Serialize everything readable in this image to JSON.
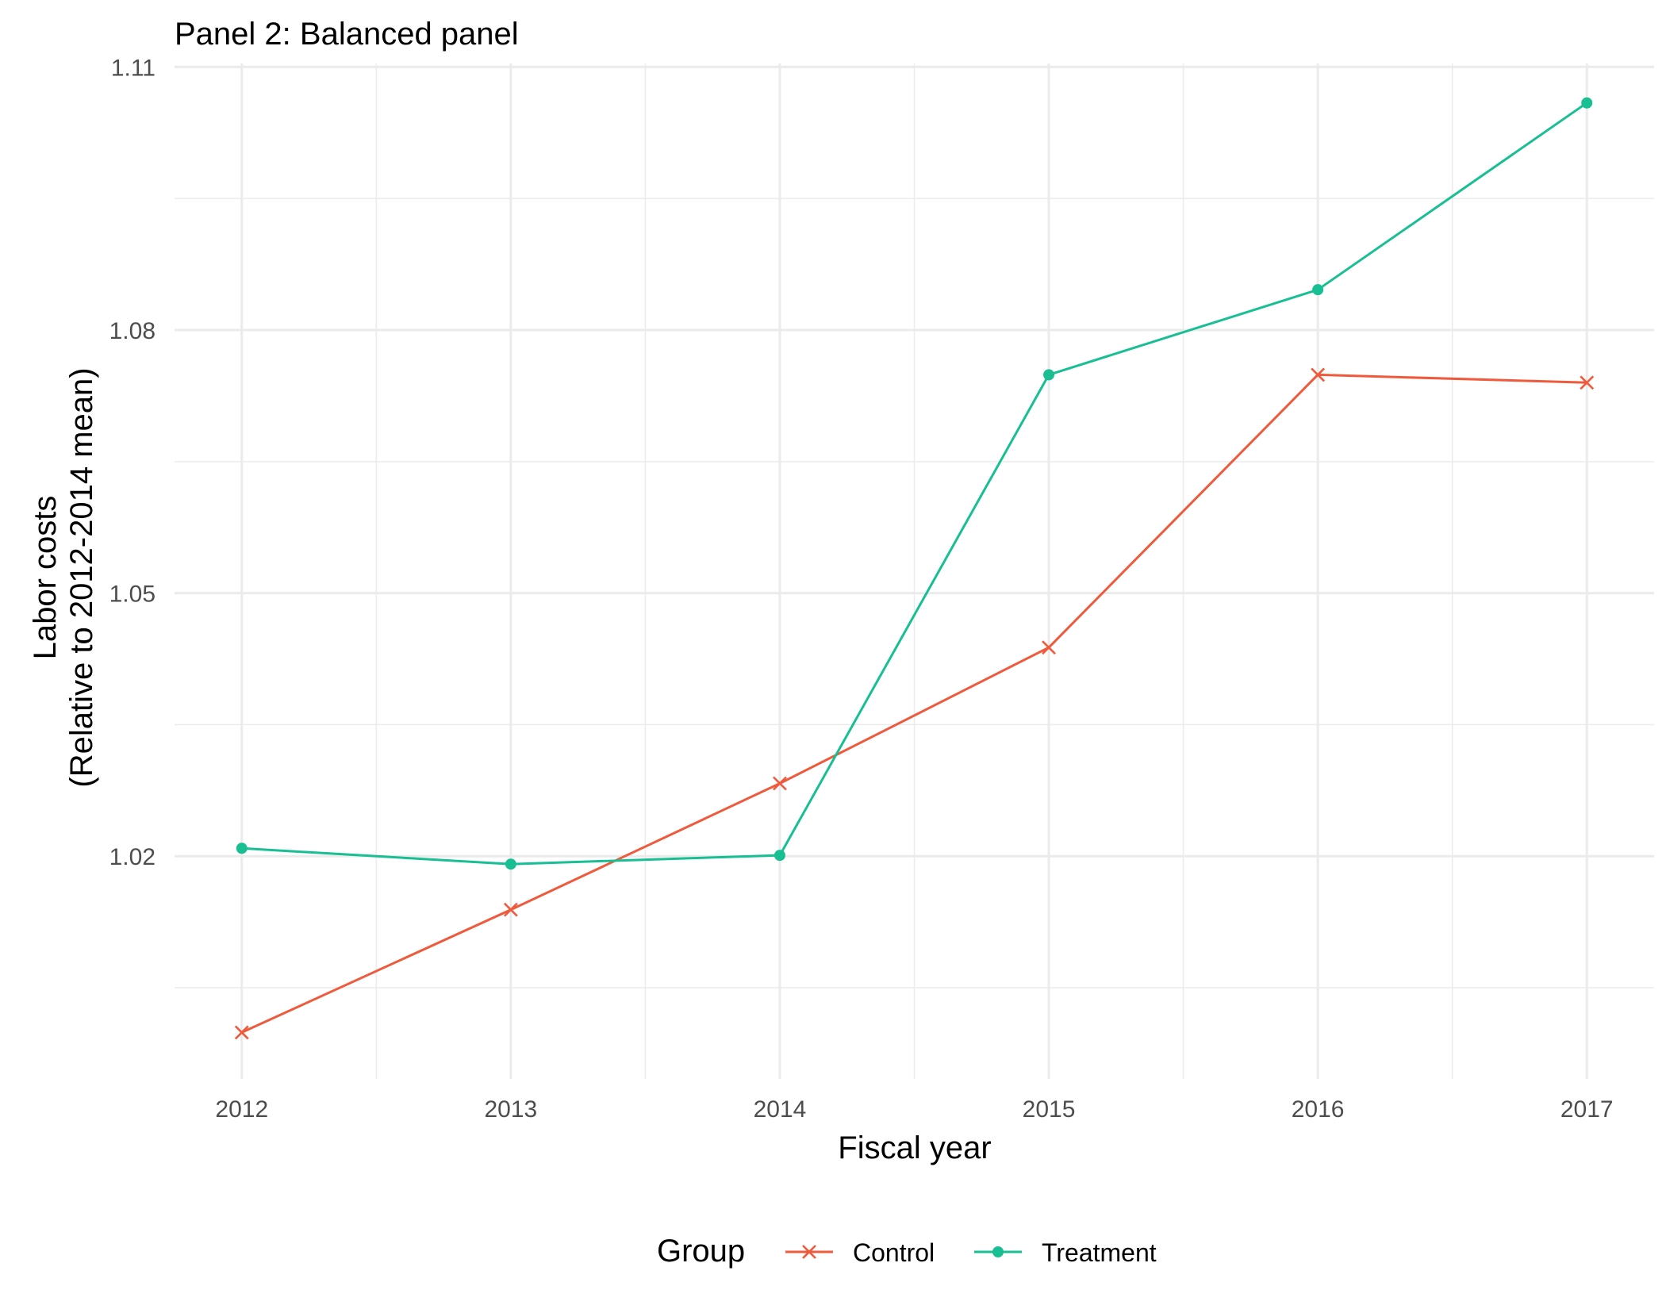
{
  "chart_data": {
    "type": "line",
    "title": "Panel 2: Balanced panel",
    "xlabel": "Fiscal year",
    "ylabel": [
      "Labor costs",
      "(Relative to 2012-2014 mean)"
    ],
    "x": [
      2012,
      2013,
      2014,
      2015,
      2016,
      2017
    ],
    "xlim": [
      2011.75,
      2017.25
    ],
    "ylim": [
      0.9946,
      1.1104
    ],
    "y_major_ticks": [
      1.02,
      1.05,
      1.08,
      1.11
    ],
    "y_tick_labels": [
      "1.02",
      "1.05",
      "1.08",
      "1.11"
    ],
    "y_minor_ticks": [
      1.005,
      1.035,
      1.065,
      1.095
    ],
    "x_minor_ticks": [
      2012.5,
      2013.5,
      2014.5,
      2015.5,
      2016.5
    ],
    "grid": true,
    "legend": {
      "title": "Group",
      "position": "bottom"
    },
    "series": [
      {
        "name": "Control",
        "color": "#f05a3c",
        "marker": "x",
        "values": [
          0.9999,
          1.0139,
          1.0283,
          1.0438,
          1.0749,
          1.074
        ]
      },
      {
        "name": "Treatment",
        "color": "#17bf93",
        "marker": "circle",
        "values": [
          1.0209,
          1.0191,
          1.0201,
          1.0749,
          1.0846,
          1.1059
        ]
      }
    ]
  }
}
